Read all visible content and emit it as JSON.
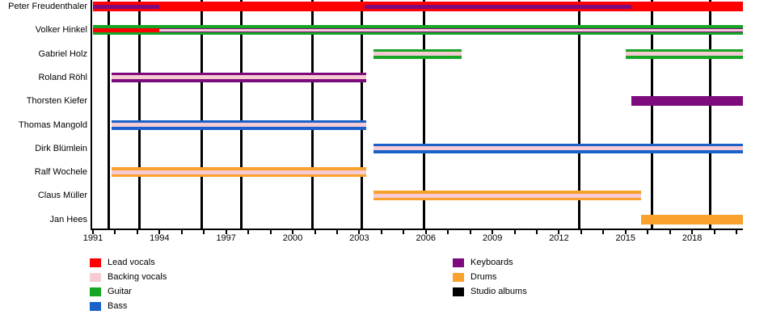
{
  "chart_data": {
    "type": "bar",
    "subtype": "band-membership-timeline-gantt",
    "title": "",
    "xlabel": "",
    "ylabel": "",
    "grid": "off",
    "x_axis": {
      "start": 1991,
      "end": 2020.3,
      "minor_tick_interval_years": 1,
      "labeled_years": [
        1991,
        1994,
        1997,
        2000,
        2003,
        2006,
        2009,
        2012,
        2015,
        2018
      ]
    },
    "roles": {
      "lead_vocals": {
        "label": "Lead vocals",
        "color": "#fe0000"
      },
      "backing_vocals": {
        "label": "Backing vocals",
        "color": "#f7cbd4"
      },
      "guitar": {
        "label": "Guitar",
        "color": "#16a524"
      },
      "bass": {
        "label": "Bass",
        "color": "#1a62c9"
      },
      "keyboards": {
        "label": "Keyboards",
        "color": "#7d0b7d"
      },
      "drums": {
        "label": "Drums",
        "color": "#f9a12d"
      },
      "studio_albums": {
        "label": "Studio albums",
        "color": "#000000"
      }
    },
    "members": [
      {
        "name": "Peter Freudenthaler",
        "bars": [
          {
            "role": "lead_vocals",
            "start": 1991,
            "end": 2020.3,
            "layer": 0
          },
          {
            "role": "keyboards",
            "start": 1991,
            "end": 1994,
            "layer": 1
          },
          {
            "role": "keyboards",
            "start": 2003.25,
            "end": 2015.25,
            "layer": 1
          }
        ]
      },
      {
        "name": "Volker Hinkel",
        "bars": [
          {
            "role": "guitar",
            "start": 1991,
            "end": 2020.3,
            "layer": 0
          },
          {
            "role": "lead_vocals",
            "start": 1991,
            "end": 1994,
            "layer": 1
          },
          {
            "role": "keyboards",
            "start": 1994,
            "end": 2020.3,
            "layer": 1
          },
          {
            "role": "backing_vocals",
            "start": 1994,
            "end": 2020.3,
            "layer": 2
          }
        ]
      },
      {
        "name": "Gabriel Holz",
        "bars": [
          {
            "role": "guitar",
            "start": 2003.65,
            "end": 2007.6,
            "layer": 0
          },
          {
            "role": "backing_vocals",
            "start": 2003.65,
            "end": 2007.6,
            "layer": 1
          },
          {
            "role": "guitar",
            "start": 2015,
            "end": 2020.3,
            "layer": 0
          },
          {
            "role": "backing_vocals",
            "start": 2015,
            "end": 2020.3,
            "layer": 1
          }
        ]
      },
      {
        "name": "Roland Röhl",
        "bars": [
          {
            "role": "keyboards",
            "start": 1991.85,
            "end": 2003.3,
            "layer": 0
          },
          {
            "role": "backing_vocals",
            "start": 1991.85,
            "end": 2003.3,
            "layer": 1
          }
        ]
      },
      {
        "name": "Thorsten Kiefer",
        "bars": [
          {
            "role": "keyboards",
            "start": 2015.25,
            "end": 2020.3,
            "layer": 0
          }
        ]
      },
      {
        "name": "Thomas Mangold",
        "bars": [
          {
            "role": "bass",
            "start": 1991.85,
            "end": 2003.3,
            "layer": 0
          },
          {
            "role": "backing_vocals",
            "start": 1991.85,
            "end": 2003.3,
            "layer": 1
          }
        ]
      },
      {
        "name": "Dirk Blümlein",
        "bars": [
          {
            "role": "bass",
            "start": 2003.65,
            "end": 2020.3,
            "layer": 0
          },
          {
            "role": "backing_vocals",
            "start": 2003.65,
            "end": 2020.3,
            "layer": 1
          }
        ]
      },
      {
        "name": "Ralf Wochele",
        "bars": [
          {
            "role": "drums",
            "start": 1991.85,
            "end": 2003.3,
            "layer": 0
          },
          {
            "role": "backing_vocals",
            "start": 1991.85,
            "end": 2003.3,
            "layer": 1
          }
        ]
      },
      {
        "name": "Claus Müller",
        "bars": [
          {
            "role": "drums",
            "start": 2003.65,
            "end": 2015.7,
            "layer": 0
          },
          {
            "role": "backing_vocals",
            "start": 2003.65,
            "end": 2015.7,
            "layer": 1
          }
        ]
      },
      {
        "name": "Jan Hees",
        "bars": [
          {
            "role": "drums",
            "start": 2015.7,
            "end": 2020.3,
            "layer": 0
          }
        ]
      }
    ],
    "album_lines_years": [
      1991.7,
      1993.1,
      1995.9,
      1997.7,
      2000.9,
      2003.1,
      2005.9,
      2012.9,
      2016.2,
      2018.8
    ],
    "legend": {
      "position": "bottom",
      "left_column": [
        "lead_vocals",
        "backing_vocals",
        "guitar",
        "bass"
      ],
      "right_column": [
        "keyboards",
        "drums",
        "studio_albums"
      ]
    }
  }
}
